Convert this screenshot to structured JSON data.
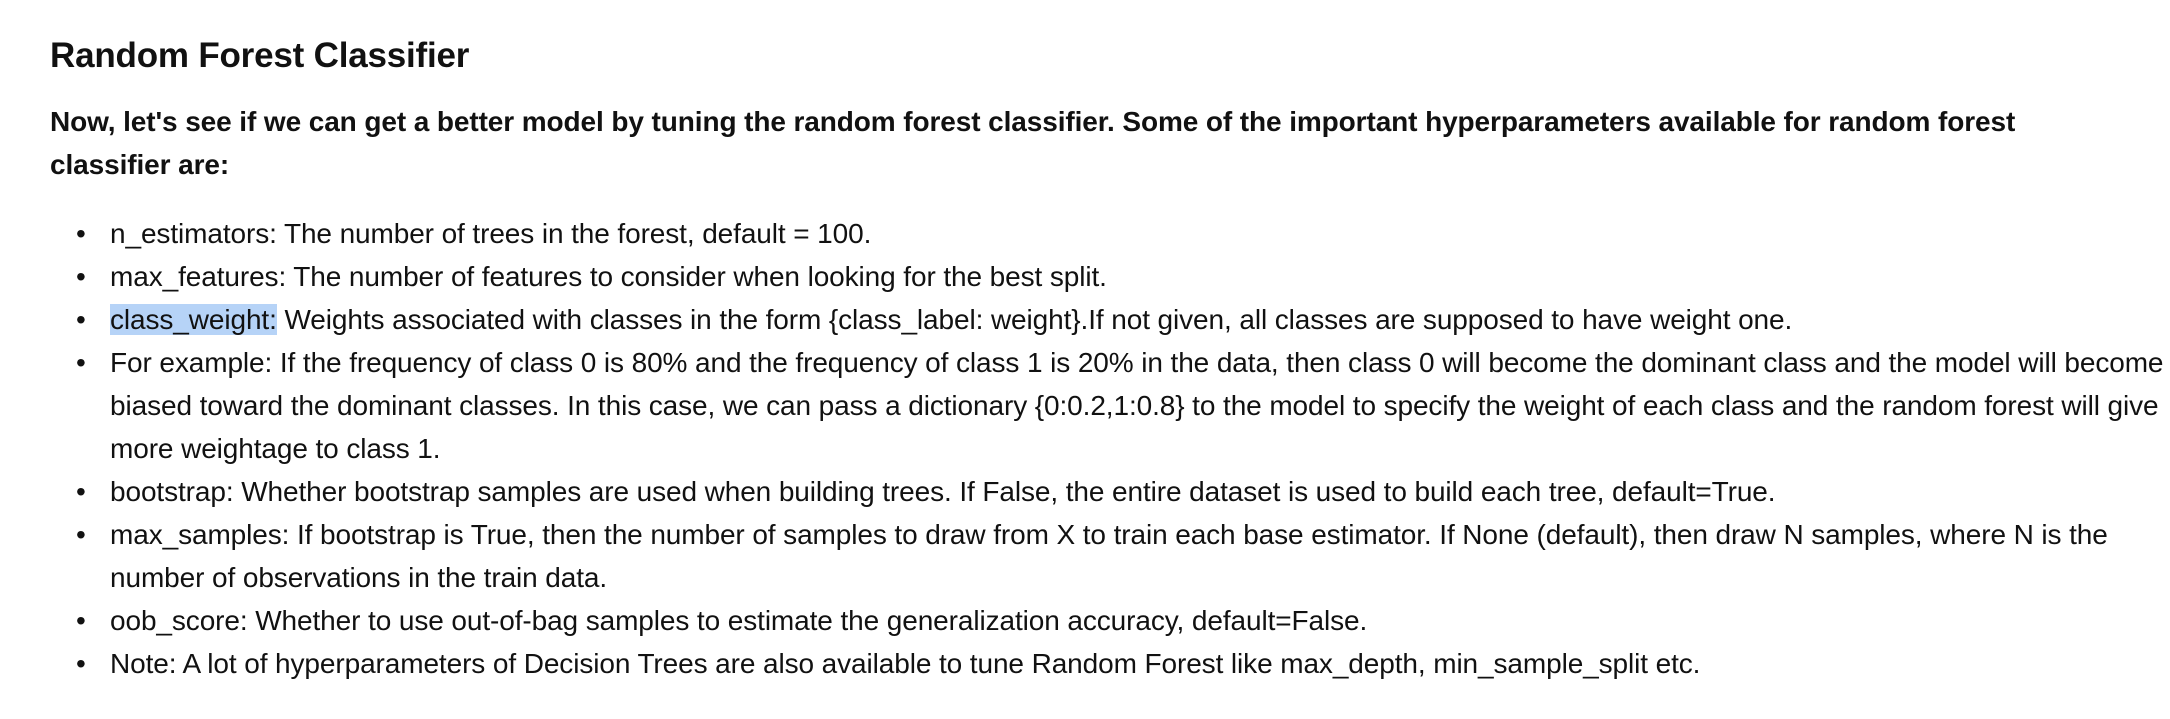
{
  "title": "Random Forest Classifier",
  "intro": "Now, let's see if we can get a better model by tuning the random forest classifier. Some of the important hyperparameters available for random forest classifier are:",
  "items": [
    {
      "text": "n_estimators: The number of trees in the forest, default = 100."
    },
    {
      "text": "max_features: The number of features to consider when looking for the best split."
    },
    {
      "highlighted": "class_weight:",
      "text": " Weights associated with classes in the form {class_label: weight}.If not given, all classes are supposed to have weight one."
    },
    {
      "text": "For example: If the frequency of class 0 is 80% and the frequency of class 1 is 20% in the data, then class 0 will become the dominant class and the model will become biased toward the dominant classes. In this case, we can pass a dictionary {0:0.2,1:0.8} to the model to specify the weight of each class and the random forest will give more weightage to class 1."
    },
    {
      "text": "bootstrap: Whether bootstrap samples are used when building trees. If False, the entire dataset is used to build each tree, default=True."
    },
    {
      "text": "max_samples: If bootstrap is True, then the number of samples to draw from X to train each base estimator. If None (default), then draw N samples, where N is the number of observations in the train data."
    },
    {
      "text": "oob_score: Whether to use out-of-bag samples to estimate the generalization accuracy, default=False."
    },
    {
      "text": "Note: A lot of hyperparameters of Decision Trees are also available to tune Random Forest like max_depth, min_sample_split etc."
    }
  ],
  "highlight_color": "#b6d3f7"
}
